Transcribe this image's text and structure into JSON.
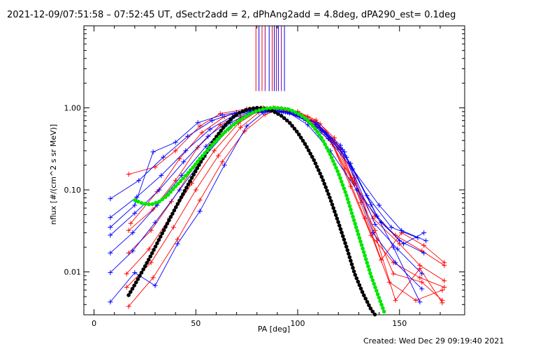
{
  "chart_data": {
    "type": "line",
    "title": "2021-12-09/07:51:58 – 07:52:45 UT, dSectr2add = 2, dPhAng2add = 4.8deg, dPA290_est=  0.1deg",
    "xlabel": "PA [deg]",
    "ylabel": "nflux [#/(cm^2 s sr MeV)]",
    "xlim": [
      -5,
      182
    ],
    "ylim": [
      0.003,
      10
    ],
    "yscale": "log",
    "x_ticks": [
      "0",
      "50",
      "100",
      "150"
    ],
    "y_ticks": [
      "0.01",
      "0.10",
      "1.00"
    ],
    "footer": "Created: Wed Dec 29 09:19:40 2021",
    "colors": {
      "red": "#ff0000",
      "blue": "#0000ff",
      "black": "#000000",
      "green": "#00e600",
      "purple": "#800080"
    },
    "top_marks": [
      {
        "x": 79.5,
        "color": "#ff0000"
      },
      {
        "x": 81,
        "color": "#0000ff"
      },
      {
        "x": 82.5,
        "color": "#ff0000"
      },
      {
        "x": 84,
        "color": "#800080"
      },
      {
        "x": 86,
        "color": "#0000ff"
      },
      {
        "x": 87.5,
        "color": "#ff0000"
      },
      {
        "x": 88.5,
        "color": "#0000ff"
      },
      {
        "x": 89.5,
        "color": "#800080"
      },
      {
        "x": 90.5,
        "color": "#0000ff"
      },
      {
        "x": 92,
        "color": "#800080"
      },
      {
        "x": 93.5,
        "color": "#0000ff"
      }
    ],
    "series": [
      {
        "color": "red",
        "x": [
          17,
          30,
          40,
          52,
          62,
          75,
          82,
          88,
          95,
          100,
          110,
          120,
          128,
          137,
          150,
          160,
          172
        ],
        "y": [
          0.155,
          0.19,
          0.3,
          0.6,
          0.85,
          0.97,
          1.0,
          0.98,
          0.92,
          0.82,
          0.62,
          0.33,
          0.12,
          0.045,
          0.022,
          0.012,
          0.0078
        ]
      },
      {
        "color": "red",
        "x": [
          17,
          29,
          40,
          51,
          62,
          74,
          83,
          90,
          98,
          108,
          118,
          127,
          138,
          148,
          161,
          172
        ],
        "y": [
          0.032,
          0.058,
          0.13,
          0.33,
          0.62,
          0.92,
          1.0,
          0.97,
          0.88,
          0.68,
          0.38,
          0.13,
          0.048,
          0.028,
          0.018,
          0.012
        ]
      },
      {
        "color": "red",
        "x": [
          17,
          28,
          38,
          49,
          60,
          72,
          82,
          90,
          99,
          108,
          117,
          126,
          136,
          147,
          160,
          172
        ],
        "y": [
          0.017,
          0.032,
          0.072,
          0.19,
          0.42,
          0.78,
          0.96,
          0.97,
          0.84,
          0.63,
          0.36,
          0.11,
          0.028,
          0.013,
          0.0085,
          0.0065
        ]
      },
      {
        "color": "red",
        "x": [
          16,
          27,
          37,
          48,
          59,
          71,
          81,
          89,
          98,
          107,
          116,
          126,
          138,
          147,
          161,
          171
        ],
        "y": [
          0.0095,
          0.019,
          0.045,
          0.12,
          0.3,
          0.65,
          0.93,
          0.99,
          0.89,
          0.69,
          0.41,
          0.14,
          0.032,
          0.0095,
          0.0075,
          0.0045
        ]
      },
      {
        "color": "red",
        "x": [
          16,
          28,
          39,
          50,
          61,
          72,
          81,
          88,
          95,
          105,
          114,
          123,
          133,
          145,
          158,
          171
        ],
        "y": [
          0.0065,
          0.013,
          0.035,
          0.1,
          0.26,
          0.58,
          0.88,
          1.0,
          0.95,
          0.78,
          0.5,
          0.18,
          0.045,
          0.0075,
          0.0045,
          0.006
        ]
      },
      {
        "color": "red",
        "x": [
          17,
          29,
          41,
          52,
          63,
          74,
          84,
          92,
          100,
          109,
          118,
          128,
          139,
          148,
          160,
          171
        ],
        "y": [
          0.0038,
          0.0085,
          0.025,
          0.075,
          0.22,
          0.52,
          0.83,
          0.97,
          0.9,
          0.71,
          0.43,
          0.14,
          0.024,
          0.0045,
          0.011,
          0.0042
        ]
      },
      {
        "color": "red",
        "x": [
          18,
          31,
          42,
          53,
          64,
          75,
          85,
          92,
          101,
          111,
          121,
          131,
          141,
          151,
          162,
          172
        ],
        "y": [
          0.039,
          0.095,
          0.24,
          0.5,
          0.78,
          0.95,
          0.98,
          0.96,
          0.86,
          0.64,
          0.32,
          0.07,
          0.014,
          0.03,
          0.021,
          0.013
        ]
      },
      {
        "color": "blue",
        "x": [
          8,
          22,
          34,
          46,
          58,
          70,
          80,
          88,
          96,
          105,
          116,
          129,
          141,
          152,
          162
        ],
        "y": [
          0.078,
          0.13,
          0.25,
          0.45,
          0.7,
          0.88,
          0.94,
          0.95,
          0.86,
          0.62,
          0.3,
          0.1,
          0.04,
          0.022,
          0.03
        ]
      },
      {
        "color": "blue",
        "x": [
          8,
          21,
          33,
          45,
          57,
          69,
          79,
          87,
          95,
          104,
          115,
          127,
          140,
          151,
          163
        ],
        "y": [
          0.046,
          0.082,
          0.15,
          0.3,
          0.55,
          0.82,
          0.93,
          0.94,
          0.88,
          0.7,
          0.42,
          0.18,
          0.065,
          0.032,
          0.024
        ]
      },
      {
        "color": "blue",
        "x": [
          8,
          20,
          32,
          44,
          56,
          68,
          78,
          86,
          94,
          103,
          114,
          126,
          139,
          150,
          162
        ],
        "y": [
          0.028,
          0.052,
          0.1,
          0.22,
          0.45,
          0.75,
          0.91,
          0.93,
          0.89,
          0.74,
          0.47,
          0.21,
          0.048,
          0.024,
          0.017
        ]
      },
      {
        "color": "blue",
        "x": [
          8,
          19,
          31,
          43,
          55,
          67,
          77,
          85,
          93,
          102,
          112,
          124,
          138,
          149,
          161
        ],
        "y": [
          0.017,
          0.03,
          0.065,
          0.15,
          0.34,
          0.66,
          0.88,
          0.92,
          0.9,
          0.78,
          0.53,
          0.25,
          0.038,
          0.019,
          0.0095
        ]
      },
      {
        "color": "blue",
        "x": [
          8,
          19,
          30,
          42,
          54,
          66,
          76,
          84,
          92,
          101,
          111,
          123,
          137,
          148,
          161
        ],
        "y": [
          0.0098,
          0.018,
          0.04,
          0.1,
          0.25,
          0.55,
          0.84,
          0.9,
          0.88,
          0.79,
          0.57,
          0.29,
          0.03,
          0.013,
          0.0062
        ]
      },
      {
        "color": "blue",
        "x": [
          8,
          20,
          30,
          41,
          52,
          64,
          75,
          83,
          91,
          100,
          110,
          122,
          136,
          147,
          160
        ],
        "y": [
          0.0043,
          0.0098,
          0.0068,
          0.022,
          0.055,
          0.2,
          0.6,
          0.87,
          0.92,
          0.86,
          0.62,
          0.31,
          0.066,
          0.02,
          0.0043
        ]
      },
      {
        "color": "blue",
        "x": [
          8,
          20,
          29,
          40,
          51,
          63,
          74,
          82,
          90,
          99,
          109,
          121,
          134,
          146,
          159
        ],
        "y": [
          0.035,
          0.065,
          0.29,
          0.38,
          0.66,
          0.82,
          0.92,
          0.93,
          0.91,
          0.85,
          0.66,
          0.35,
          0.085,
          0.035,
          0.026
        ]
      }
    ],
    "black_model": {
      "x": [
        17,
        20,
        24,
        28,
        32,
        36,
        40,
        44,
        48,
        52,
        56,
        60,
        64,
        68,
        72,
        76,
        80,
        84,
        88,
        92,
        96,
        100,
        104,
        108,
        112,
        116,
        120,
        124,
        128,
        132,
        136,
        138
      ],
      "y": [
        0.0052,
        0.007,
        0.0105,
        0.016,
        0.025,
        0.039,
        0.06,
        0.092,
        0.14,
        0.21,
        0.31,
        0.44,
        0.6,
        0.76,
        0.89,
        0.97,
        1.0,
        0.98,
        0.91,
        0.8,
        0.66,
        0.5,
        0.35,
        0.23,
        0.14,
        0.078,
        0.04,
        0.02,
        0.0095,
        0.0055,
        0.0035,
        0.003
      ]
    },
    "green_model": {
      "x": [
        20,
        24,
        28,
        32,
        36,
        40,
        44,
        48,
        52,
        56,
        60,
        64,
        68,
        72,
        76,
        80,
        84,
        88,
        92,
        96,
        100,
        104,
        108,
        112,
        116,
        120,
        124,
        128,
        132,
        136,
        140,
        143
      ],
      "y": [
        0.075,
        0.068,
        0.066,
        0.072,
        0.085,
        0.11,
        0.14,
        0.18,
        0.24,
        0.31,
        0.4,
        0.5,
        0.61,
        0.72,
        0.83,
        0.92,
        0.98,
        1.0,
        0.99,
        0.95,
        0.86,
        0.74,
        0.58,
        0.42,
        0.27,
        0.16,
        0.085,
        0.04,
        0.019,
        0.009,
        0.0048,
        0.003
      ]
    }
  }
}
